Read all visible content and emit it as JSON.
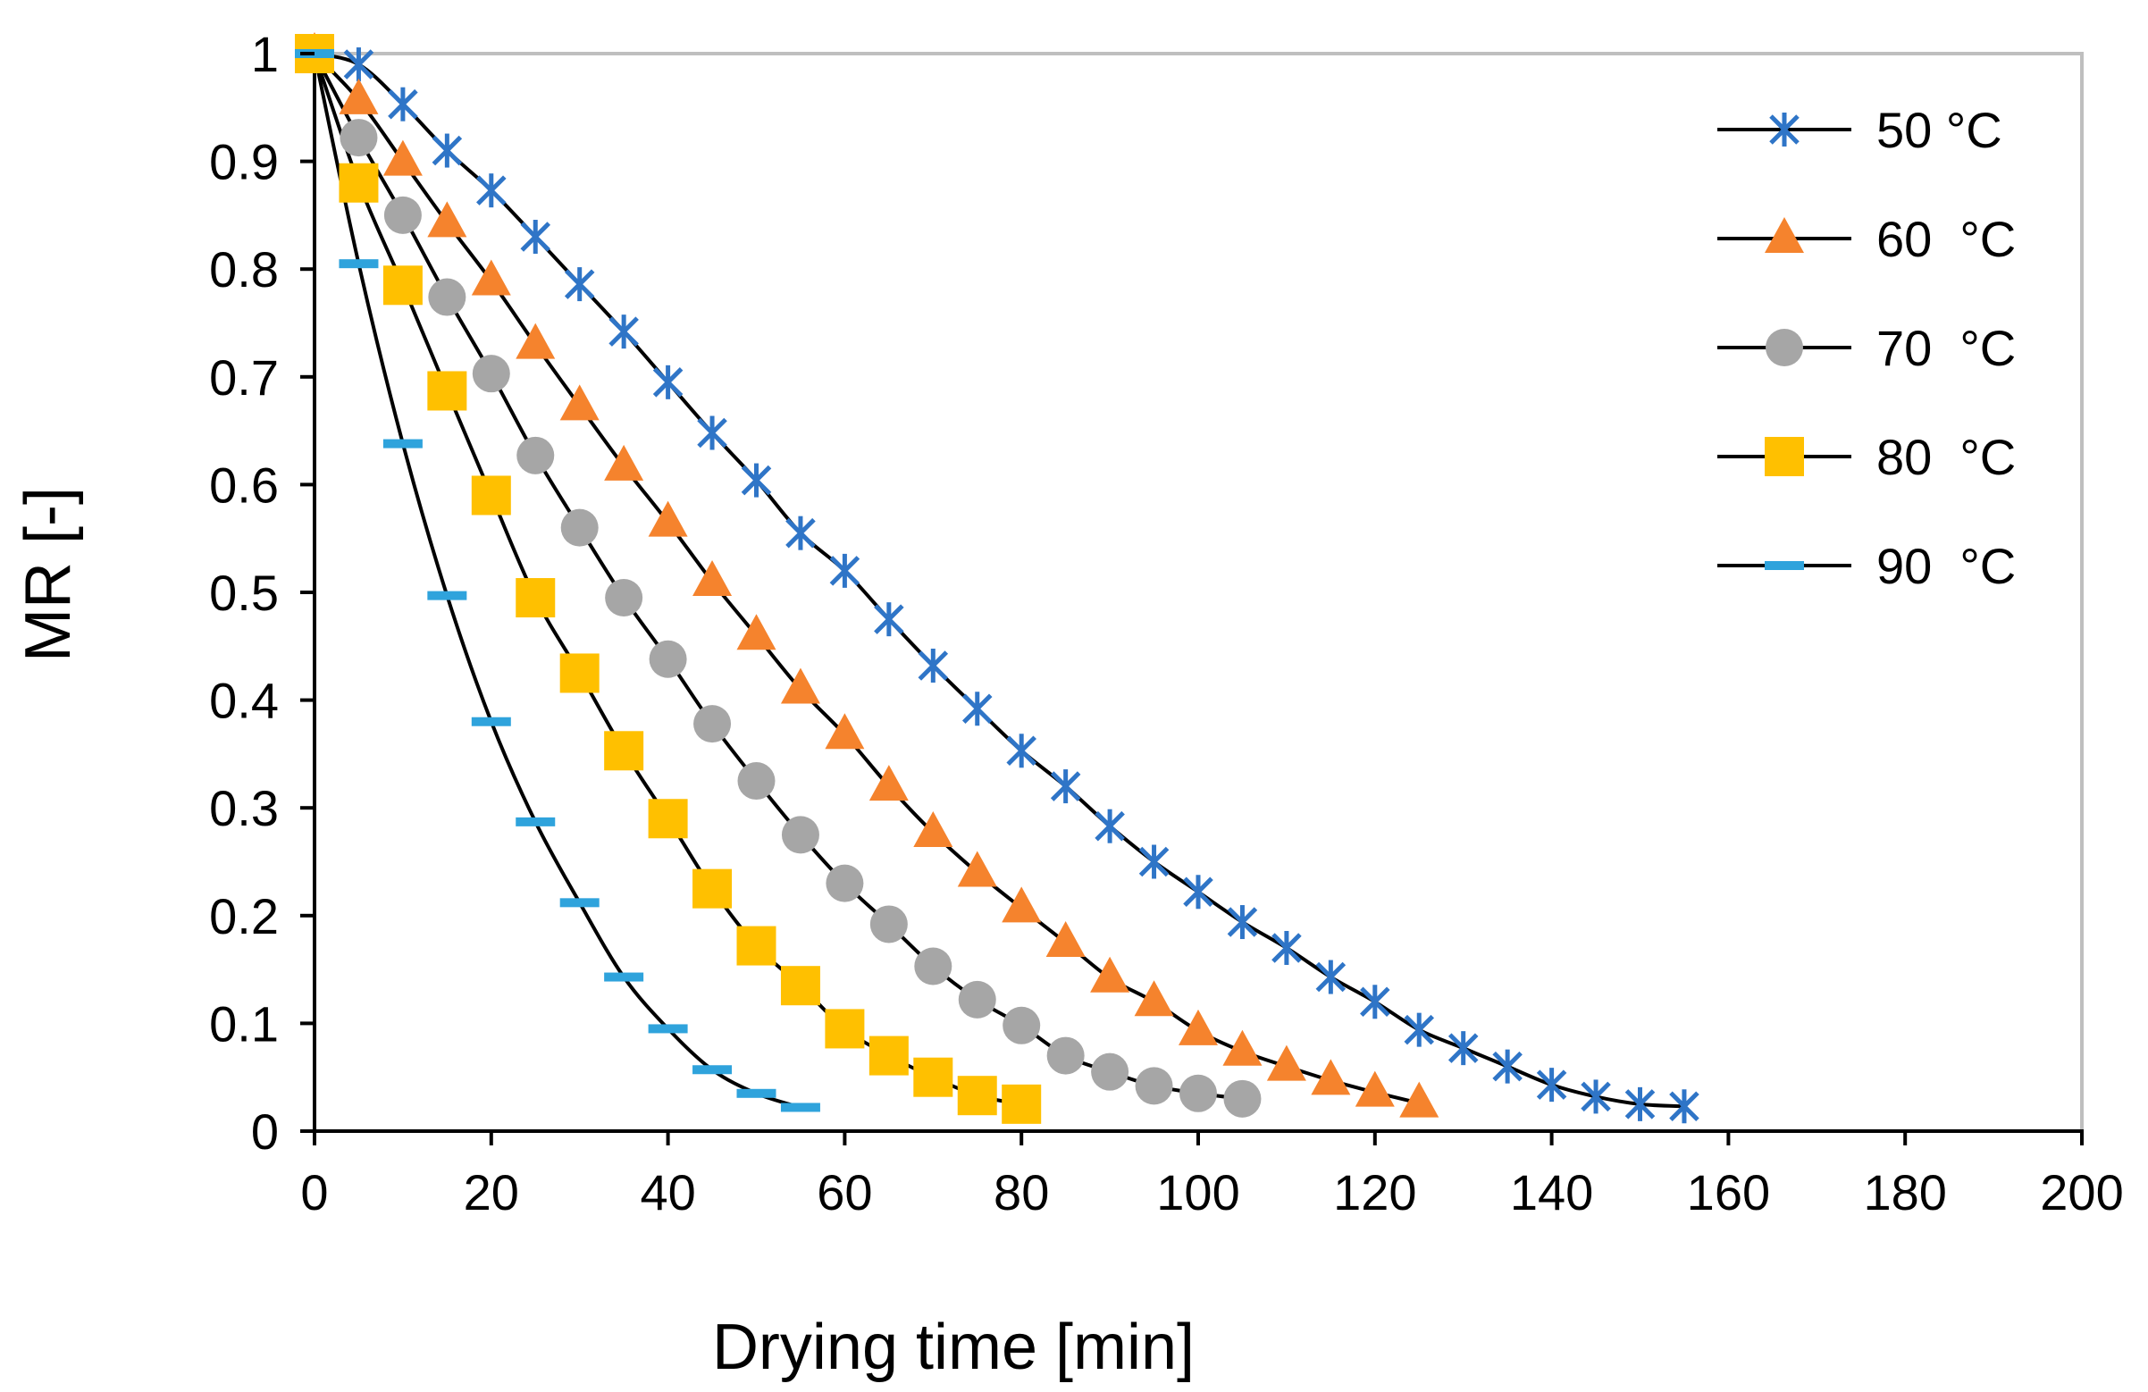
{
  "chart_data": {
    "type": "scatter",
    "title": "",
    "xlabel": "Drying time [min]",
    "ylabel": "MR [-]",
    "xlim": [
      0,
      200
    ],
    "ylim": [
      0,
      1
    ],
    "x_ticks": [
      0,
      20,
      40,
      60,
      80,
      100,
      120,
      140,
      160,
      180,
      200
    ],
    "y_ticks": [
      0,
      0.1,
      0.2,
      0.3,
      0.4,
      0.5,
      0.6,
      0.7,
      0.8,
      0.9,
      1
    ],
    "y_tick_labels": [
      "0",
      "0.1",
      "0.2",
      "0.3",
      "0.4",
      "0.5",
      "0.6",
      "0.7",
      "0.8",
      "0.9",
      "1"
    ],
    "grid": false,
    "legend_position": "top-right",
    "fit_line_color": "#000000",
    "series": [
      {
        "name": "50 °C",
        "marker": "star",
        "color": "#2F75C7",
        "x": [
          0,
          5,
          10,
          15,
          20,
          25,
          30,
          35,
          40,
          45,
          50,
          55,
          60,
          65,
          70,
          75,
          80,
          85,
          90,
          95,
          100,
          105,
          110,
          115,
          120,
          125,
          130,
          135,
          140,
          145,
          150,
          155
        ],
        "y": [
          1.0,
          0.99,
          0.953,
          0.91,
          0.873,
          0.83,
          0.786,
          0.742,
          0.695,
          0.648,
          0.604,
          0.555,
          0.52,
          0.475,
          0.432,
          0.392,
          0.353,
          0.32,
          0.283,
          0.25,
          0.222,
          0.194,
          0.17,
          0.143,
          0.12,
          0.094,
          0.077,
          0.06,
          0.043,
          0.032,
          0.025,
          0.023
        ]
      },
      {
        "name": "60  °C",
        "marker": "triangle",
        "color": "#F5832D",
        "x": [
          0,
          5,
          10,
          15,
          20,
          25,
          30,
          35,
          40,
          45,
          50,
          55,
          60,
          65,
          70,
          75,
          80,
          85,
          90,
          95,
          100,
          105,
          110,
          115,
          120,
          125
        ],
        "y": [
          1.0,
          0.957,
          0.9,
          0.843,
          0.789,
          0.73,
          0.673,
          0.617,
          0.565,
          0.51,
          0.46,
          0.41,
          0.368,
          0.32,
          0.277,
          0.24,
          0.207,
          0.175,
          0.142,
          0.12,
          0.093,
          0.074,
          0.06,
          0.047,
          0.036,
          0.026
        ]
      },
      {
        "name": "70  °C",
        "marker": "circle",
        "color": "#A6A6A6",
        "x": [
          0,
          5,
          10,
          15,
          20,
          25,
          30,
          35,
          40,
          45,
          50,
          55,
          60,
          65,
          70,
          75,
          80,
          85,
          90,
          95,
          100,
          105
        ],
        "y": [
          1.0,
          0.922,
          0.85,
          0.774,
          0.703,
          0.627,
          0.56,
          0.495,
          0.438,
          0.378,
          0.325,
          0.275,
          0.23,
          0.192,
          0.153,
          0.122,
          0.098,
          0.07,
          0.055,
          0.042,
          0.035,
          0.03
        ]
      },
      {
        "name": "80  °C",
        "marker": "square",
        "color": "#FFC000",
        "x": [
          0,
          5,
          10,
          15,
          20,
          25,
          30,
          35,
          40,
          45,
          50,
          55,
          60,
          65,
          70,
          75,
          80
        ],
        "y": [
          1.0,
          0.88,
          0.785,
          0.687,
          0.59,
          0.495,
          0.425,
          0.353,
          0.29,
          0.225,
          0.172,
          0.135,
          0.095,
          0.07,
          0.05,
          0.033,
          0.025
        ]
      },
      {
        "name": "90  °C",
        "marker": "dash",
        "color": "#2FA3DC",
        "x": [
          0,
          5,
          10,
          15,
          20,
          25,
          30,
          35,
          40,
          45,
          50,
          55
        ],
        "y": [
          1.0,
          0.805,
          0.638,
          0.497,
          0.38,
          0.287,
          0.212,
          0.143,
          0.095,
          0.057,
          0.035,
          0.022
        ]
      }
    ]
  }
}
